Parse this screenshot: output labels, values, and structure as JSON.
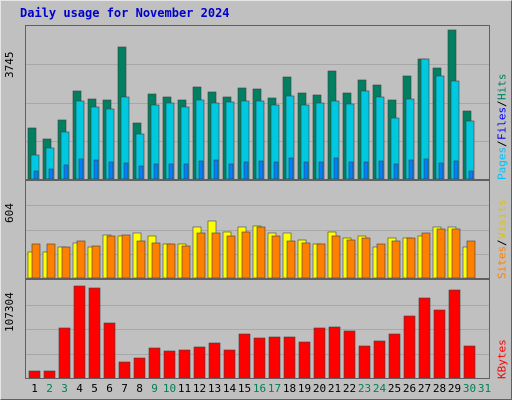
{
  "title": "Daily usage for November 2024",
  "colors": {
    "hits": "#008060",
    "files": "#00e0ff",
    "pages": "#00c0ff",
    "visits": "#ffff00",
    "sites": "#ff8000",
    "kbytes": "#ff0000",
    "visits_bar": "#ffff00",
    "sites_bar": "#ff8000",
    "hits_bar": "#008060",
    "files_bar": "#00c8e0",
    "pages_bar": "#0080ff",
    "kbytes_bar": "#ff0000",
    "weekday_label": "#000000",
    "weekend_label": "#00805a"
  },
  "legend": {
    "hits_panel": [
      "Pages",
      "Files",
      "Hits"
    ],
    "sites_panel": [
      "Sites",
      "Visits"
    ],
    "kb_panel": [
      "KBytes"
    ],
    "separator": "/"
  },
  "chart_data": [
    {
      "type": "bar",
      "title": "Daily usage for November 2024",
      "ymax_label": "3745",
      "ylim": [
        0,
        3745
      ],
      "categories": [
        "1",
        "2",
        "3",
        "4",
        "5",
        "6",
        "7",
        "8",
        "9",
        "10",
        "11",
        "12",
        "13",
        "14",
        "15",
        "16",
        "17",
        "18",
        "19",
        "20",
        "21",
        "22",
        "23",
        "24",
        "25",
        "26",
        "27",
        "28",
        "29",
        "30",
        "31"
      ],
      "series": [
        {
          "name": "Hits",
          "values": [
            1270,
            1010,
            1480,
            2200,
            2020,
            1980,
            3310,
            1420,
            2130,
            2050,
            1980,
            2300,
            2180,
            2060,
            2280,
            2270,
            2030,
            2560,
            2150,
            2120,
            2710,
            2160,
            2480,
            2370,
            1980,
            2580,
            3020,
            2800,
            3750,
            1710,
            0
          ]
        },
        {
          "name": "Files",
          "values": [
            600,
            780,
            1180,
            1960,
            1800,
            1750,
            2050,
            1140,
            1870,
            1910,
            1800,
            1980,
            1900,
            1940,
            1960,
            1960,
            1870,
            2090,
            1870,
            1900,
            1960,
            1880,
            2200,
            2060,
            1530,
            2010,
            3020,
            2600,
            2470,
            1460,
            0
          ]
        },
        {
          "name": "Pages",
          "values": [
            200,
            240,
            350,
            500,
            480,
            430,
            400,
            330,
            380,
            370,
            380,
            450,
            480,
            380,
            430,
            450,
            420,
            530,
            430,
            420,
            520,
            420,
            420,
            450,
            380,
            480,
            500,
            400,
            450,
            200,
            0
          ]
        }
      ],
      "bar_slots": [
        {
          "name": "Visits",
          "values": [
            0,
            0,
            0,
            0,
            0,
            0,
            0,
            0,
            0,
            0,
            0,
            0,
            0,
            0,
            0,
            0,
            0,
            0,
            0,
            0,
            0,
            0,
            0,
            0,
            0,
            0,
            0,
            0,
            0,
            0,
            0
          ]
        }
      ]
    },
    {
      "type": "bar",
      "ymax_label": "604",
      "ylim": [
        0,
        604
      ],
      "categories": [
        "1",
        "2",
        "3",
        "4",
        "5",
        "6",
        "7",
        "8",
        "9",
        "10",
        "11",
        "12",
        "13",
        "14",
        "15",
        "16",
        "17",
        "18",
        "19",
        "20",
        "21",
        "22",
        "23",
        "24",
        "25",
        "26",
        "27",
        "28",
        "29",
        "30",
        "31"
      ],
      "series": [
        {
          "name": "Visits",
          "values": [
            170,
            170,
            200,
            230,
            200,
            280,
            270,
            290,
            270,
            220,
            220,
            330,
            370,
            300,
            330,
            340,
            290,
            290,
            250,
            220,
            300,
            260,
            270,
            200,
            260,
            260,
            270,
            330,
            330,
            200,
            0
          ]
        },
        {
          "name": "Sites",
          "values": [
            220,
            220,
            200,
            240,
            210,
            270,
            280,
            240,
            230,
            220,
            210,
            290,
            290,
            270,
            300,
            330,
            270,
            240,
            230,
            220,
            270,
            250,
            260,
            220,
            240,
            260,
            290,
            320,
            320,
            240,
            0
          ]
        }
      ]
    },
    {
      "type": "bar",
      "ymax_label": "107304",
      "ylim": [
        0,
        107304
      ],
      "categories": [
        "1",
        "2",
        "3",
        "4",
        "5",
        "6",
        "7",
        "8",
        "9",
        "10",
        "11",
        "12",
        "13",
        "14",
        "15",
        "16",
        "17",
        "18",
        "19",
        "20",
        "21",
        "22",
        "23",
        "24",
        "25",
        "26",
        "27",
        "28",
        "29",
        "30",
        "31"
      ],
      "series": [
        {
          "name": "KBytes",
          "values": [
            8100,
            8100,
            56900,
            104700,
            103300,
            62600,
            18700,
            22900,
            33700,
            30800,
            31600,
            35900,
            40400,
            32300,
            50300,
            46200,
            46700,
            47200,
            40700,
            57300,
            58400,
            54000,
            36200,
            42600,
            50400,
            70700,
            91400,
            77500,
            100300,
            36900,
            0
          ]
        }
      ]
    }
  ],
  "x_axis": {
    "labels": [
      "1",
      "2",
      "3",
      "4",
      "5",
      "6",
      "7",
      "8",
      "9",
      "10",
      "11",
      "12",
      "13",
      "14",
      "15",
      "16",
      "17",
      "18",
      "19",
      "20",
      "21",
      "22",
      "23",
      "24",
      "25",
      "26",
      "27",
      "28",
      "29",
      "30",
      "31"
    ],
    "weekend": [
      false,
      true,
      true,
      false,
      false,
      false,
      false,
      false,
      true,
      true,
      false,
      false,
      false,
      false,
      false,
      true,
      true,
      false,
      false,
      false,
      false,
      false,
      true,
      true,
      false,
      false,
      false,
      false,
      false,
      true,
      true
    ]
  }
}
